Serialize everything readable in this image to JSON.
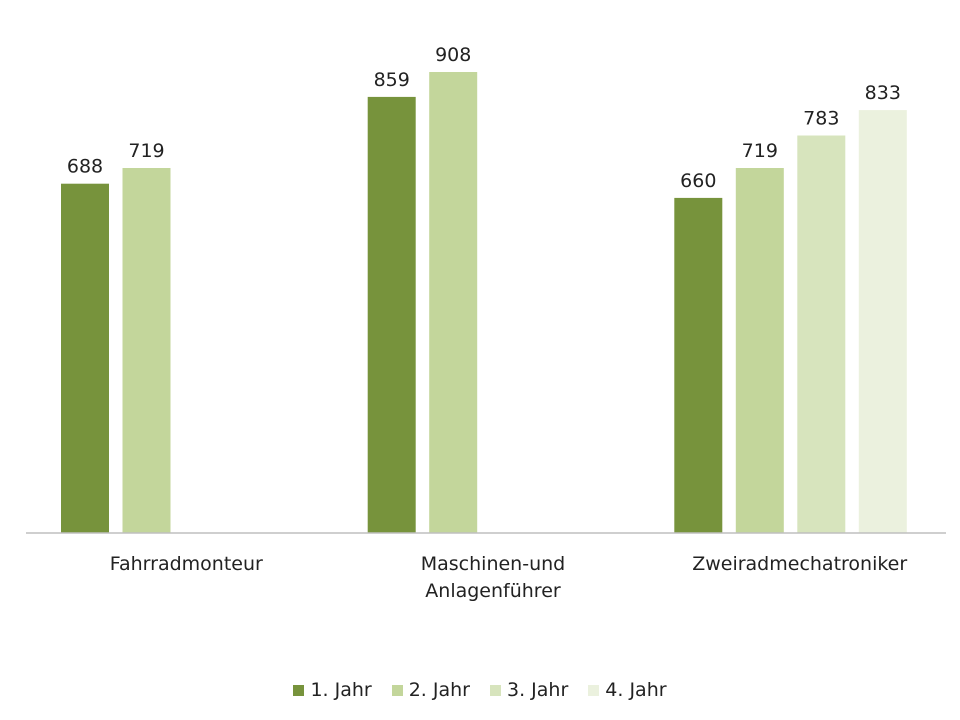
{
  "chart_data": {
    "type": "bar",
    "title": "",
    "xlabel": "",
    "ylabel": "",
    "ylim": [
      0,
      1000
    ],
    "grid": false,
    "legend_position": "bottom",
    "categories": [
      [
        "Fahrradmonteur"
      ],
      [
        "Maschinen-und",
        "Anlagenführer"
      ],
      [
        "Zweiradmechatroniker"
      ]
    ],
    "series": [
      {
        "name": "1. Jahr",
        "color": "#77933c",
        "values": [
          688,
          859,
          660
        ]
      },
      {
        "name": "2. Jahr",
        "color": "#c3d69b",
        "values": [
          719,
          908,
          719
        ]
      },
      {
        "name": "3. Jahr",
        "color": "#d7e4bd",
        "values": [
          null,
          null,
          783
        ]
      },
      {
        "name": "4. Jahr",
        "color": "#ebf1de",
        "values": [
          null,
          null,
          833
        ]
      }
    ]
  }
}
